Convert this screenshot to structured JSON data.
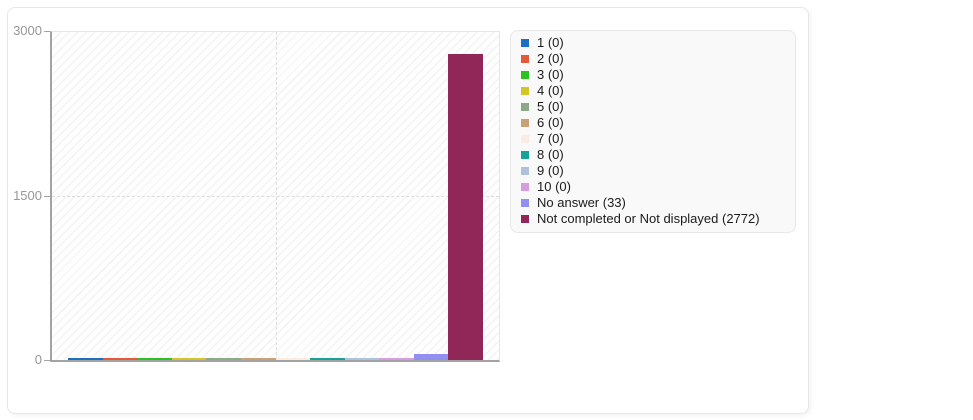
{
  "chart_data": {
    "type": "bar",
    "title": "",
    "xlabel": "",
    "ylabel": "",
    "categories": [
      "1",
      "2",
      "3",
      "4",
      "5",
      "6",
      "7",
      "8",
      "9",
      "10",
      "No answer",
      "Not completed or Not displayed"
    ],
    "values": [
      0,
      0,
      0,
      0,
      0,
      0,
      0,
      0,
      0,
      0,
      33,
      2772
    ],
    "colors": [
      "#1d6fc2",
      "#e4593a",
      "#2cc322",
      "#d4c427",
      "#8aab85",
      "#c8a274",
      "#fcebe2",
      "#16a29b",
      "#aec3d9",
      "#d89ce0",
      "#918ff0",
      "#912659"
    ],
    "ylim": [
      0,
      3000
    ],
    "yticks": [
      3000,
      1500,
      0
    ],
    "ytick_labels": [
      "3000",
      "1500",
      "0"
    ],
    "grid": true,
    "plot_background": "hatched",
    "legend_position": "right",
    "legend": {
      "items": [
        {
          "label": "1",
          "count": 0,
          "display": "1 (0)",
          "color": "#1d6fc2"
        },
        {
          "label": "2",
          "count": 0,
          "display": "2 (0)",
          "color": "#e4593a"
        },
        {
          "label": "3",
          "count": 0,
          "display": "3 (0)",
          "color": "#2cc322"
        },
        {
          "label": "4",
          "count": 0,
          "display": "4 (0)",
          "color": "#d4c427"
        },
        {
          "label": "5",
          "count": 0,
          "display": "5 (0)",
          "color": "#8aab85"
        },
        {
          "label": "6",
          "count": 0,
          "display": "6 (0)",
          "color": "#c8a274"
        },
        {
          "label": "7",
          "count": 0,
          "display": "7 (0)",
          "color": "#fcebe2"
        },
        {
          "label": "8",
          "count": 0,
          "display": "8 (0)",
          "color": "#16a29b"
        },
        {
          "label": "9",
          "count": 0,
          "display": "9 (0)",
          "color": "#aec3d9"
        },
        {
          "label": "10",
          "count": 0,
          "display": "10 (0)",
          "color": "#d89ce0"
        },
        {
          "label": "No answer",
          "count": 33,
          "display": "No answer (33)",
          "color": "#918ff0"
        },
        {
          "label": "Not completed or Not displayed",
          "count": 2772,
          "display": "Not completed or Not displayed (2772)",
          "color": "#912659"
        }
      ]
    }
  }
}
